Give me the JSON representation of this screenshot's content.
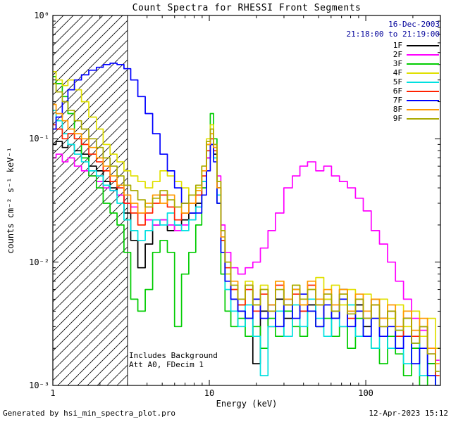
{
  "title": "Count Spectra for RHESSI Front Segments",
  "header": {
    "date": "16-Dec-2003",
    "time_range": "21:18:00 to 21:19:00"
  },
  "annotations": {
    "background": "Includes Background",
    "attenuator": "Att A0, FDecim 1"
  },
  "footer": {
    "generator": "Generated by hsi_min_spectra_plot.pro",
    "timestamp": "12-Apr-2023 15:12"
  },
  "colors": {
    "date_text": "#00009a",
    "axis": "#000000"
  },
  "axes": {
    "xlabel": "Energy (keV)",
    "ylabel": "counts cm⁻² s⁻¹ keV⁻¹",
    "xticks": [
      {
        "v": 1,
        "label": "1"
      },
      {
        "v": 10,
        "label": "10"
      },
      {
        "v": 100,
        "label": "100"
      }
    ],
    "yticks": [
      {
        "v": 1,
        "label": "10⁰"
      },
      {
        "v": 0.1,
        "label": "10⁻¹"
      },
      {
        "v": 0.01,
        "label": "10⁻²"
      },
      {
        "v": 0.001,
        "label": "10⁻³"
      }
    ]
  },
  "chart_data": {
    "type": "line",
    "title": "Count Spectra for RHESSI Front Segments",
    "xlabel": "Energy (keV)",
    "ylabel": "counts cm-2 s-1 keV-1",
    "x_scale": "log",
    "y_scale": "log",
    "xlim": [
      1,
      300
    ],
    "ylim": [
      0.001,
      1
    ],
    "grid": false,
    "legend_position": "top-right",
    "hatch_region": {
      "xmin": 1,
      "xmax": 3.0,
      "meaning": "attenuated low-energy region"
    },
    "x": [
      1.0,
      1.1,
      1.2,
      1.3,
      1.45,
      1.6,
      1.8,
      2.0,
      2.2,
      2.45,
      2.7,
      3.0,
      3.3,
      3.7,
      4.1,
      4.6,
      5.1,
      5.7,
      6.3,
      7.0,
      7.8,
      8.6,
      9.3,
      9.9,
      10.4,
      10.9,
      11.5,
      12.2,
      13.0,
      14.5,
      16.0,
      18.0,
      20.0,
      22.5,
      25.0,
      28.0,
      32.0,
      36.0,
      40.0,
      45.0,
      51.0,
      57.0,
      64.0,
      72.0,
      81.0,
      91.0,
      102,
      115,
      130,
      146,
      164,
      185,
      208,
      234,
      263,
      296
    ],
    "series": [
      {
        "name": "1F",
        "color": "#000000",
        "values": [
          0.09,
          0.095,
          0.085,
          0.09,
          0.08,
          0.075,
          0.06,
          0.055,
          0.045,
          0.04,
          0.035,
          0.025,
          0.015,
          0.009,
          0.014,
          0.02,
          0.022,
          0.018,
          0.02,
          0.022,
          0.025,
          0.03,
          0.045,
          0.07,
          0.09,
          0.075,
          0.04,
          0.015,
          0.008,
          0.005,
          0.004,
          0.0035,
          0.0015,
          0.004,
          0.003,
          0.005,
          0.0035,
          0.006,
          0.004,
          0.0045,
          0.003,
          0.005,
          0.0035,
          0.006,
          0.004,
          0.0045,
          0.003,
          0.005,
          0.0035,
          0.004,
          0.0025,
          0.0035,
          0.002,
          0.003,
          0.0015,
          0.001
        ]
      },
      {
        "name": "2F",
        "color": "#ff00ff",
        "values": [
          0.07,
          0.075,
          0.065,
          0.07,
          0.06,
          0.055,
          0.05,
          0.045,
          0.04,
          0.038,
          0.035,
          0.03,
          0.028,
          0.025,
          0.022,
          0.02,
          0.022,
          0.02,
          0.018,
          0.02,
          0.022,
          0.028,
          0.04,
          0.07,
          0.1,
          0.085,
          0.05,
          0.02,
          0.012,
          0.009,
          0.008,
          0.009,
          0.01,
          0.013,
          0.018,
          0.025,
          0.04,
          0.05,
          0.06,
          0.065,
          0.055,
          0.06,
          0.05,
          0.045,
          0.04,
          0.033,
          0.026,
          0.018,
          0.014,
          0.01,
          0.007,
          0.005,
          0.0035,
          0.0028,
          0.002,
          0.0016
        ]
      },
      {
        "name": "3F",
        "color": "#00cc00",
        "values": [
          0.32,
          0.28,
          0.22,
          0.16,
          0.1,
          0.07,
          0.05,
          0.04,
          0.03,
          0.025,
          0.02,
          0.012,
          0.005,
          0.004,
          0.006,
          0.012,
          0.015,
          0.012,
          0.003,
          0.008,
          0.012,
          0.02,
          0.04,
          0.09,
          0.16,
          0.1,
          0.03,
          0.008,
          0.004,
          0.003,
          0.0035,
          0.0025,
          0.003,
          0.002,
          0.0035,
          0.0025,
          0.004,
          0.003,
          0.0025,
          0.004,
          0.003,
          0.0035,
          0.0025,
          0.003,
          0.002,
          0.0035,
          0.0025,
          0.002,
          0.0015,
          0.0025,
          0.0018,
          0.0012,
          0.002,
          0.001,
          0.0015,
          0.001
        ]
      },
      {
        "name": "4F",
        "color": "#e0e000",
        "values": [
          0.35,
          0.3,
          0.27,
          0.3,
          0.25,
          0.2,
          0.15,
          0.12,
          0.09,
          0.075,
          0.065,
          0.055,
          0.05,
          0.045,
          0.04,
          0.045,
          0.055,
          0.05,
          0.045,
          0.04,
          0.035,
          0.04,
          0.06,
          0.1,
          0.13,
          0.09,
          0.045,
          0.015,
          0.008,
          0.006,
          0.0045,
          0.007,
          0.005,
          0.0065,
          0.0045,
          0.007,
          0.005,
          0.0065,
          0.0045,
          0.006,
          0.0075,
          0.005,
          0.0065,
          0.0045,
          0.006,
          0.004,
          0.0055,
          0.0035,
          0.005,
          0.0035,
          0.0045,
          0.003,
          0.004,
          0.0025,
          0.0035,
          0.002
        ]
      },
      {
        "name": "5F",
        "color": "#00e0e0",
        "values": [
          0.17,
          0.14,
          0.11,
          0.09,
          0.075,
          0.065,
          0.055,
          0.05,
          0.042,
          0.038,
          0.03,
          0.022,
          0.018,
          0.015,
          0.018,
          0.022,
          0.02,
          0.025,
          0.02,
          0.018,
          0.022,
          0.028,
          0.045,
          0.08,
          0.1,
          0.07,
          0.035,
          0.012,
          0.006,
          0.004,
          0.003,
          0.0045,
          0.0025,
          0.0012,
          0.003,
          0.004,
          0.0025,
          0.0045,
          0.003,
          0.005,
          0.0035,
          0.0025,
          0.004,
          0.003,
          0.0045,
          0.0025,
          0.0035,
          0.002,
          0.003,
          0.002,
          0.0028,
          0.0015,
          0.0022,
          0.0012,
          0.0018,
          0.001
        ]
      },
      {
        "name": "6F",
        "color": "#ff2200",
        "values": [
          0.13,
          0.12,
          0.1,
          0.11,
          0.1,
          0.09,
          0.075,
          0.065,
          0.055,
          0.045,
          0.04,
          0.03,
          0.025,
          0.02,
          0.025,
          0.03,
          0.035,
          0.028,
          0.022,
          0.025,
          0.03,
          0.035,
          0.05,
          0.08,
          0.1,
          0.08,
          0.04,
          0.015,
          0.009,
          0.006,
          0.0045,
          0.006,
          0.004,
          0.0055,
          0.004,
          0.0065,
          0.0045,
          0.0055,
          0.004,
          0.0065,
          0.0045,
          0.0055,
          0.004,
          0.0055,
          0.0035,
          0.005,
          0.0035,
          0.0045,
          0.003,
          0.004,
          0.0025,
          0.0035,
          0.0025,
          0.003,
          0.0018,
          0.0012
        ]
      },
      {
        "name": "7F",
        "color": "#0000ff",
        "values": [
          0.12,
          0.15,
          0.2,
          0.25,
          0.3,
          0.33,
          0.36,
          0.38,
          0.4,
          0.41,
          0.4,
          0.37,
          0.3,
          0.22,
          0.16,
          0.11,
          0.075,
          0.055,
          0.04,
          0.03,
          0.025,
          0.025,
          0.035,
          0.055,
          0.09,
          0.065,
          0.03,
          0.012,
          0.007,
          0.005,
          0.004,
          0.0035,
          0.005,
          0.0035,
          0.0045,
          0.003,
          0.005,
          0.0035,
          0.0055,
          0.004,
          0.003,
          0.0045,
          0.0035,
          0.005,
          0.003,
          0.004,
          0.0025,
          0.0035,
          0.0025,
          0.003,
          0.002,
          0.0025,
          0.0015,
          0.002,
          0.0012,
          0.001
        ]
      },
      {
        "name": "8F",
        "color": "#ff9900",
        "values": [
          0.19,
          0.16,
          0.14,
          0.12,
          0.11,
          0.1,
          0.085,
          0.07,
          0.06,
          0.05,
          0.042,
          0.035,
          0.03,
          0.025,
          0.03,
          0.035,
          0.03,
          0.035,
          0.028,
          0.025,
          0.03,
          0.038,
          0.055,
          0.09,
          0.11,
          0.085,
          0.04,
          0.016,
          0.01,
          0.007,
          0.005,
          0.0065,
          0.0045,
          0.006,
          0.0045,
          0.007,
          0.005,
          0.006,
          0.0045,
          0.007,
          0.005,
          0.006,
          0.0045,
          0.006,
          0.004,
          0.0055,
          0.004,
          0.005,
          0.0035,
          0.0045,
          0.003,
          0.004,
          0.0028,
          0.0035,
          0.002,
          0.0015
        ]
      },
      {
        "name": "9F",
        "color": "#aaaa00",
        "values": [
          0.28,
          0.24,
          0.2,
          0.17,
          0.14,
          0.12,
          0.1,
          0.085,
          0.07,
          0.06,
          0.05,
          0.042,
          0.038,
          0.032,
          0.028,
          0.033,
          0.038,
          0.032,
          0.028,
          0.03,
          0.035,
          0.042,
          0.06,
          0.095,
          0.12,
          0.09,
          0.045,
          0.018,
          0.01,
          0.0065,
          0.005,
          0.0065,
          0.0045,
          0.006,
          0.004,
          0.006,
          0.0045,
          0.0065,
          0.005,
          0.006,
          0.0045,
          0.0055,
          0.004,
          0.0055,
          0.0038,
          0.005,
          0.0035,
          0.0045,
          0.003,
          0.004,
          0.0028,
          0.0035,
          0.0022,
          0.003,
          0.0018,
          0.0013
        ]
      }
    ]
  }
}
